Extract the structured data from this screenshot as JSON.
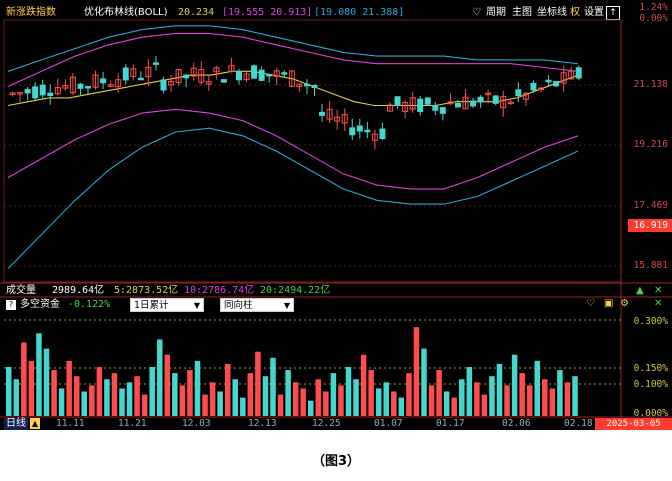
{
  "header": {
    "index_name": "新涨跌指数",
    "indicator_name": "优化布林线(BOLL)",
    "mid_value": "20.234",
    "upper_value": "[19.555",
    "upper_value2": "20.913]",
    "lower_value": "[19.080",
    "lower_value2": "21.388]",
    "buttons": [
      "周期",
      "主图",
      "坐标线",
      "权",
      "设置"
    ],
    "up_label": "↑"
  },
  "price_axis": {
    "ticks": [
      "21.138",
      "19.216",
      "17.469",
      "15.881"
    ],
    "top_tick": "1.24%",
    "top_tick2": "0.00%",
    "current": "16.919"
  },
  "volume_bar": {
    "label": "成交量",
    "value": "2989.64亿",
    "ma5": "5:2873.52亿",
    "ma10": "10:2786.74亿",
    "ma20": "20:2494.22亿"
  },
  "sub_panel": {
    "help": "?",
    "title": "多空资金",
    "value": "-0.122%",
    "select1": "1日累计",
    "select2": "同向柱",
    "ticks": [
      "0.300%",
      "0.150%",
      "0.100%",
      "0.000%"
    ]
  },
  "x_axis": {
    "period": "日线",
    "labels": [
      "11.11",
      "11.21",
      "12.03",
      "12.13",
      "12.25",
      "01.07",
      "01.17",
      "02.06",
      "02.18"
    ],
    "current_date": "2025-03-05"
  },
  "caption": "（图3）",
  "colors": {
    "up": "#ff4d4d",
    "down": "#45d6cf",
    "ma_mid": "#e0d040",
    "band_inner": "#e040e0",
    "band_outer": "#2aa6d8",
    "axis_text": "#d24a4a"
  },
  "chart_data": [
    {
      "type": "candlestick",
      "title": "优化布林线(BOLL)",
      "series": [
        {
          "name": "20.234",
          "values": [
            20.1,
            20.2,
            20.3,
            20.3,
            20.4,
            20.5,
            20.6,
            20.7,
            20.8,
            20.9,
            20.9,
            21.0,
            21.0,
            20.9,
            20.8,
            20.6,
            20.4,
            20.2,
            20.1,
            20.1,
            20.1,
            20.1,
            20.2,
            20.2,
            20.2,
            20.3,
            20.5,
            20.7,
            20.9
          ]
        },
        {
          "name": "19.555",
          "values": [
            19.9,
            20.0,
            20.1,
            20.2,
            20.3,
            20.3,
            20.3,
            20.2,
            20.0,
            19.7,
            19.4,
            19.2,
            19.2,
            19.4,
            19.6,
            19.7,
            19.7,
            19.6
          ]
        },
        {
          "name": "19.080",
          "values": [
            19.2,
            19.4,
            19.6,
            19.7,
            19.8,
            19.8,
            19.7,
            19.5,
            19.3,
            19.0,
            18.7,
            18.4,
            18.2,
            18.1,
            18.2,
            18.4,
            18.6,
            18.6
          ]
        }
      ],
      "ylim": [
        15.5,
        22.3
      ]
    },
    {
      "type": "bar",
      "title": "多空资金",
      "values": [
        0.16,
        0.12,
        0.24,
        0.18,
        0.27,
        0.22,
        0.15,
        0.09,
        0.18,
        0.13,
        0.08,
        0.1,
        0.16,
        0.12,
        0.14,
        0.09,
        0.11,
        0.13,
        0.07,
        0.16,
        0.25,
        0.2,
        0.14,
        0.1,
        0.15,
        0.18,
        0.07,
        0.11,
        0.08,
        0.17,
        0.12,
        0.06,
        0.14,
        0.21,
        0.13,
        0.19,
        0.07,
        0.15,
        0.11,
        0.09,
        0.05,
        0.12,
        0.08,
        0.14,
        0.1,
        0.16,
        0.12,
        0.2,
        0.15,
        0.09,
        0.11,
        0.08,
        0.06,
        0.14,
        0.29,
        0.22,
        0.1,
        0.15,
        0.08,
        0.06,
        0.12,
        0.16,
        0.11,
        0.07,
        0.13,
        0.17,
        0.1,
        0.2,
        0.14,
        0.1,
        0.18,
        0.12,
        0.09,
        0.15,
        0.11,
        0.13
      ],
      "ylim": [
        0,
        0.32
      ]
    }
  ]
}
